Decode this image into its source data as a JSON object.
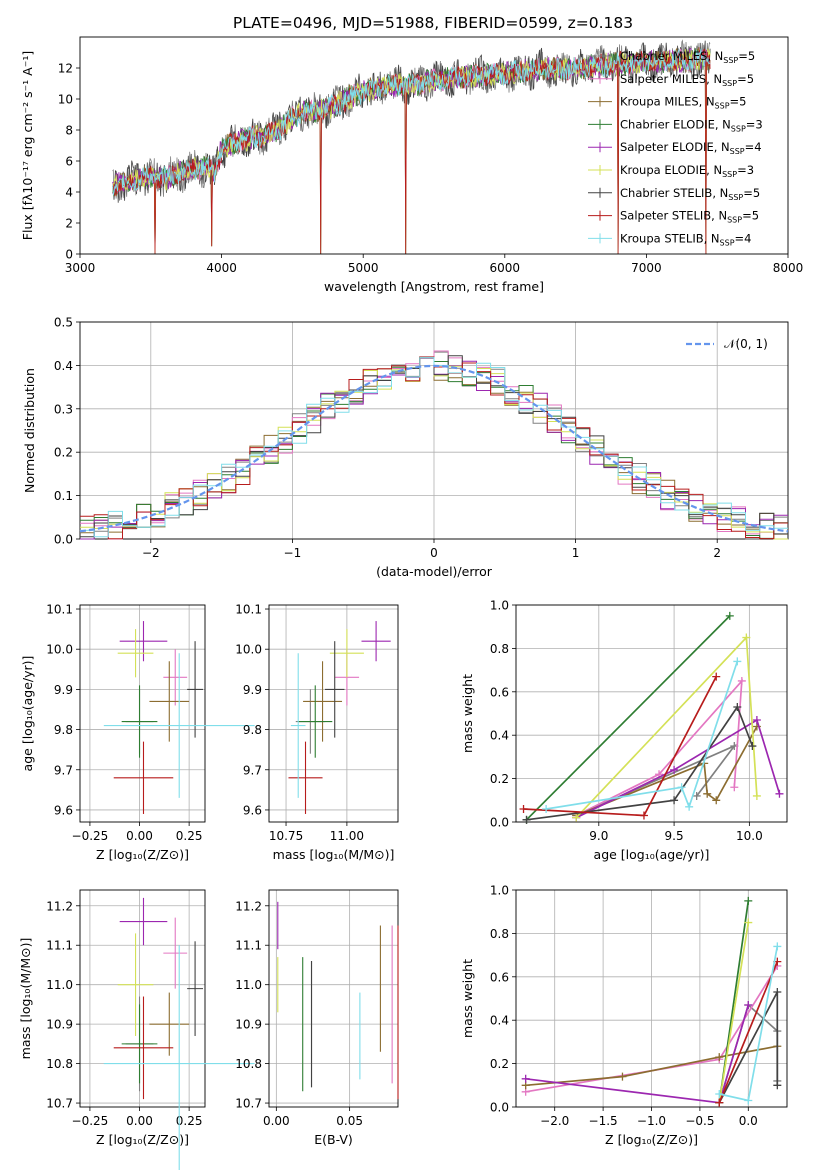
{
  "figure_title": "PLATE=0496, MJD=51988, FIBERID=0599, z=0.183",
  "series_colors": [
    "#808080",
    "#e377c2",
    "#8c6d31",
    "#2e7d32",
    "#9c27b0",
    "#d4e157",
    "#424242",
    "#b71c1c",
    "#80deea"
  ],
  "chart_data": [
    {
      "id": "spectrum",
      "type": "line",
      "title": "PLATE=0496, MJD=51988, FIBERID=0599, z=0.183",
      "xlabel": "wavelength [Angstrom, rest frame]",
      "ylabel": "Flux [fλ10⁻¹⁷ erg cm⁻² s⁻¹ A⁻¹]",
      "xlim": [
        3000,
        8000
      ],
      "ylim": [
        0,
        14
      ],
      "xticks": [
        3000,
        4000,
        5000,
        6000,
        7000,
        8000
      ],
      "yticks": [
        0,
        2,
        4,
        6,
        8,
        10,
        12
      ],
      "legend_position": "right",
      "legend": [
        {
          "label": "Chabrier MILES, N",
          "sub": "SSP",
          "suffix": "=5"
        },
        {
          "label": "Salpeter MILES, N",
          "sub": "SSP",
          "suffix": "=5"
        },
        {
          "label": "Kroupa MILES, N",
          "sub": "SSP",
          "suffix": "=5"
        },
        {
          "label": "Chabrier ELODIE, N",
          "sub": "SSP",
          "suffix": "=3"
        },
        {
          "label": "Salpeter ELODIE, N",
          "sub": "SSP",
          "suffix": "=4"
        },
        {
          "label": "Kroupa ELODIE, N",
          "sub": "SSP",
          "suffix": "=3"
        },
        {
          "label": "Chabrier STELIB, N",
          "sub": "SSP",
          "suffix": "=5"
        },
        {
          "label": "Salpeter STELIB, N",
          "sub": "SSP",
          "suffix": "=5"
        },
        {
          "label": "Kroupa STELIB, N",
          "sub": "SSP",
          "suffix": "=4"
        }
      ],
      "x": [
        3230,
        3300,
        3400,
        3500,
        3600,
        3700,
        3800,
        3900,
        3950,
        4000,
        4100,
        4200,
        4300,
        4400,
        4500,
        4600,
        4700,
        4800,
        4900,
        5000,
        5100,
        5200,
        5300,
        5400,
        5500,
        5600,
        5700,
        5800,
        5900,
        6000,
        6100,
        6200,
        6300,
        6400,
        6500,
        6600,
        6700,
        6800,
        6900,
        7000,
        7100,
        7200,
        7300,
        7400,
        7450
      ],
      "y": [
        4.3,
        4.6,
        4.8,
        5.0,
        4.9,
        5.2,
        5.5,
        5.6,
        5.2,
        6.8,
        7.2,
        7.5,
        7.6,
        8.0,
        8.8,
        9.2,
        9.3,
        9.6,
        10.1,
        10.5,
        10.7,
        10.9,
        10.9,
        11.0,
        11.2,
        11.3,
        11.4,
        11.5,
        11.6,
        11.6,
        11.8,
        11.9,
        12.0,
        11.9,
        12.0,
        12.1,
        12.2,
        12.3,
        12.3,
        12.4,
        12.4,
        12.5,
        12.5,
        12.6,
        12.6
      ],
      "dips": [
        [
          3530,
          0
        ],
        [
          3930,
          0.5
        ],
        [
          4700,
          0
        ],
        [
          5300,
          0
        ],
        [
          6800,
          0
        ],
        [
          7420,
          0
        ]
      ]
    },
    {
      "id": "residuals",
      "type": "bar",
      "xlabel": "(data-model)/error",
      "ylabel": "Normed distribution",
      "xlim": [
        -2.5,
        2.5
      ],
      "ylim": [
        0,
        0.5
      ],
      "xticks": [
        -2,
        -1,
        0,
        1,
        2
      ],
      "yticks": [
        0.0,
        0.1,
        0.2,
        0.3,
        0.4,
        0.5
      ],
      "legend_position": "upper right",
      "legend_label": "𝒩(0, 1)",
      "bin_width": 0.1,
      "histogram_seeds": [
        0.13,
        0.37,
        0.61,
        0.29,
        0.83,
        0.47,
        0.71,
        0.19,
        0.55
      ]
    },
    {
      "id": "age-vs-Z",
      "type": "scatter",
      "xlabel": "Z [log₁₀(Z/Z⊙)]",
      "ylabel": "age  [log₁₀(age/yr)]",
      "xlim": [
        -0.3,
        0.33
      ],
      "ylim": [
        9.57,
        10.11
      ],
      "xticks": [
        -0.25,
        0.0,
        0.25
      ],
      "xticklabels": [
        "−0.25",
        "0.00",
        "0.25"
      ],
      "yticks": [
        9.6,
        9.7,
        9.8,
        9.9,
        10.0,
        10.1
      ],
      "points": [
        {
          "x": 0.0,
          "y": 9.82,
          "xerr": 0.07,
          "yerr": 0.08
        },
        {
          "x": 0.18,
          "y": 9.93,
          "xerr": 0.06,
          "yerr": 0.07
        },
        {
          "x": 0.15,
          "y": 9.87,
          "xerr": 0.1,
          "yerr": 0.1
        },
        {
          "x": 0.0,
          "y": 9.82,
          "xerr": 0.09,
          "yerr": 0.09
        },
        {
          "x": 0.02,
          "y": 10.02,
          "xerr": 0.12,
          "yerr": 0.05
        },
        {
          "x": -0.02,
          "y": 9.99,
          "xerr": 0.09,
          "yerr": 0.06
        },
        {
          "x": 0.28,
          "y": 9.9,
          "xerr": 0.04,
          "yerr": 0.12
        },
        {
          "x": 0.02,
          "y": 9.68,
          "xerr": 0.15,
          "yerr": 0.09
        },
        {
          "x": 0.2,
          "y": 9.81,
          "xerr": 0.38,
          "yerr": 0.18
        }
      ]
    },
    {
      "id": "age-vs-mass",
      "type": "scatter",
      "xlabel": "mass [log₁₀(M/M⊙)]",
      "xlim": [
        10.68,
        11.21
      ],
      "ylim": [
        9.57,
        10.11
      ],
      "xticks": [
        10.75,
        11.0
      ],
      "xticklabels": [
        "10.75",
        "11.00"
      ],
      "yticks": [
        9.6,
        9.7,
        9.8,
        9.9,
        10.0,
        10.1
      ],
      "points": [
        {
          "x": 10.85,
          "y": 9.82,
          "xerr": 0.06,
          "yerr": 0.08
        },
        {
          "x": 11.0,
          "y": 9.93,
          "xerr": 0.05,
          "yerr": 0.07
        },
        {
          "x": 10.9,
          "y": 9.87,
          "xerr": 0.08,
          "yerr": 0.1
        },
        {
          "x": 10.87,
          "y": 9.82,
          "xerr": 0.07,
          "yerr": 0.09
        },
        {
          "x": 11.12,
          "y": 10.02,
          "xerr": 0.06,
          "yerr": 0.05
        },
        {
          "x": 11.0,
          "y": 9.99,
          "xerr": 0.07,
          "yerr": 0.06
        },
        {
          "x": 10.95,
          "y": 9.9,
          "xerr": 0.04,
          "yerr": 0.12
        },
        {
          "x": 10.83,
          "y": 9.68,
          "xerr": 0.07,
          "yerr": 0.09
        },
        {
          "x": 10.8,
          "y": 9.81,
          "xerr": 0.03,
          "yerr": 0.18
        }
      ]
    },
    {
      "id": "mass-weight-vs-age",
      "type": "line",
      "xlabel": "age  [log₁₀(age/yr)]",
      "ylabel": "mass weight",
      "xlim": [
        8.45,
        10.25
      ],
      "ylim": [
        0,
        1.0
      ],
      "xticks": [
        9.0,
        9.5,
        10.0
      ],
      "xticklabels": [
        "9.0",
        "9.5",
        "10.0"
      ],
      "yticks": [
        0.0,
        0.2,
        0.4,
        0.6,
        0.8,
        1.0
      ],
      "series": [
        {
          "x": [
            8.85,
            9.9,
            9.65
          ],
          "y": [
            0.03,
            0.35,
            0.12
          ]
        },
        {
          "x": [
            8.85,
            9.4,
            9.95,
            9.9
          ],
          "y": [
            0.03,
            0.22,
            0.65,
            0.16
          ]
        },
        {
          "x": [
            8.85,
            9.7,
            9.72,
            9.78,
            10.05
          ],
          "y": [
            0.03,
            0.27,
            0.13,
            0.1,
            0.44
          ]
        },
        {
          "x": [
            8.52,
            9.87
          ],
          "y": [
            0.01,
            0.95
          ]
        },
        {
          "x": [
            8.85,
            9.5,
            10.05,
            10.2
          ],
          "y": [
            0.02,
            0.24,
            0.47,
            0.13
          ]
        },
        {
          "x": [
            8.85,
            9.98,
            10.05
          ],
          "y": [
            0.02,
            0.85,
            0.12
          ]
        },
        {
          "x": [
            8.52,
            9.5,
            9.92,
            10.02
          ],
          "y": [
            0.01,
            0.1,
            0.53,
            0.35
          ]
        },
        {
          "x": [
            8.5,
            9.3,
            9.78
          ],
          "y": [
            0.06,
            0.03,
            0.67
          ]
        },
        {
          "x": [
            8.65,
            9.55,
            9.6,
            9.92
          ],
          "y": [
            0.06,
            0.16,
            0.07,
            0.74
          ]
        }
      ]
    },
    {
      "id": "mass-vs-Z",
      "type": "scatter",
      "xlabel": "Z [log₁₀(Z/Z⊙)]",
      "ylabel": "mass [log₁₀(M/M⊙)]",
      "xlim": [
        -0.3,
        0.33
      ],
      "ylim": [
        10.69,
        11.24
      ],
      "xticks": [
        -0.25,
        0.0,
        0.25
      ],
      "xticklabels": [
        "−0.25",
        "0.00",
        "0.25"
      ],
      "yticks": [
        10.7,
        10.8,
        10.9,
        11.0,
        11.1,
        11.2
      ],
      "points": [
        {
          "x": 0.0,
          "y": 10.85,
          "xerr": 0.07,
          "yerr": 0.12
        },
        {
          "x": 0.18,
          "y": 11.08,
          "xerr": 0.06,
          "yerr": 0.09
        },
        {
          "x": 0.15,
          "y": 10.9,
          "xerr": 0.1,
          "yerr": 0.08
        },
        {
          "x": 0.0,
          "y": 10.85,
          "xerr": 0.09,
          "yerr": 0.1
        },
        {
          "x": 0.02,
          "y": 11.16,
          "xerr": 0.12,
          "yerr": 0.06
        },
        {
          "x": -0.02,
          "y": 11.0,
          "xerr": 0.09,
          "yerr": 0.13
        },
        {
          "x": 0.28,
          "y": 10.99,
          "xerr": 0.04,
          "yerr": 0.12
        },
        {
          "x": 0.02,
          "y": 10.84,
          "xerr": 0.15,
          "yerr": 0.13
        },
        {
          "x": 0.2,
          "y": 10.8,
          "xerr": 0.38,
          "yerr": 0.3
        }
      ]
    },
    {
      "id": "mass-vs-EBV",
      "type": "scatter",
      "xlabel": "E(B-V)",
      "xlim": [
        -0.005,
        0.083
      ],
      "ylim": [
        10.69,
        11.24
      ],
      "xticks": [
        0.0,
        0.05
      ],
      "xticklabels": [
        "0.00",
        "0.05"
      ],
      "yticks": [
        10.7,
        10.8,
        10.9,
        11.0,
        11.1,
        11.2
      ],
      "points": [
        {
          "x": 0.024,
          "y": 10.9,
          "yerr": 0.16
        },
        {
          "x": 0.079,
          "y": 10.95,
          "yerr": 0.2
        },
        {
          "x": 0.071,
          "y": 10.99,
          "yerr": 0.16
        },
        {
          "x": 0.018,
          "y": 10.9,
          "yerr": 0.17
        },
        {
          "x": 0.001,
          "y": 11.15,
          "yerr": 0.06
        },
        {
          "x": 0.001,
          "y": 11.0,
          "yerr": 0.07
        },
        {
          "x": 0.024,
          "y": 10.9,
          "yerr": 0.16
        },
        {
          "x": 0.083,
          "y": 10.93,
          "yerr": 0.22
        },
        {
          "x": 0.057,
          "y": 10.87,
          "yerr": 0.11
        }
      ]
    },
    {
      "id": "mass-weight-vs-Z",
      "type": "line",
      "xlabel": "Z [log₁₀(Z/Z⊙)]",
      "ylabel": "mass weight",
      "xlim": [
        -2.4,
        0.4
      ],
      "ylim": [
        0,
        1.0
      ],
      "xticks": [
        -2.0,
        -1.5,
        -1.0,
        -0.5,
        0.0
      ],
      "xticklabels": [
        "−2.0",
        "−1.5",
        "−1.0",
        "−0.5",
        "0.0"
      ],
      "yticks": [
        0.0,
        0.2,
        0.4,
        0.6,
        0.8,
        1.0
      ],
      "series": [
        {
          "x": [
            -0.3,
            0.0,
            0.3,
            0.3
          ],
          "y": [
            0.02,
            0.47,
            0.35,
            0.12
          ]
        },
        {
          "x": [
            -2.3,
            -0.3,
            0.3
          ],
          "y": [
            0.07,
            0.22,
            0.65
          ]
        },
        {
          "x": [
            -2.3,
            -1.3,
            -0.3,
            0.3
          ],
          "y": [
            0.1,
            0.14,
            0.23,
            0.28
          ]
        },
        {
          "x": [
            -0.3,
            0.0
          ],
          "y": [
            0.02,
            0.95
          ]
        },
        {
          "x": [
            -2.3,
            -0.3,
            0.0
          ],
          "y": [
            0.13,
            0.02,
            0.47
          ]
        },
        {
          "x": [
            -0.3,
            0.0
          ],
          "y": [
            0.02,
            0.85
          ]
        },
        {
          "x": [
            -0.3,
            0.3,
            0.3
          ],
          "y": [
            0.02,
            0.53,
            0.1
          ]
        },
        {
          "x": [
            -0.3,
            0.3
          ],
          "y": [
            0.02,
            0.67
          ]
        },
        {
          "x": [
            -0.3,
            0.0,
            0.3
          ],
          "y": [
            0.06,
            0.03,
            0.74
          ]
        }
      ]
    }
  ]
}
